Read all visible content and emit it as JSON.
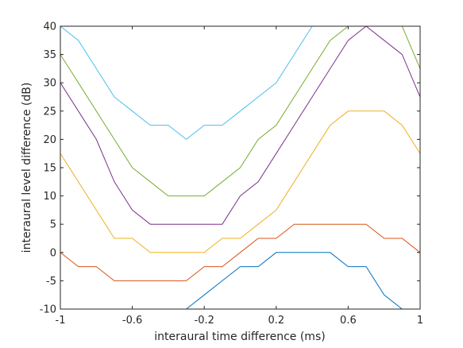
{
  "chart_data": {
    "type": "line",
    "title": "",
    "xlabel": "interaural time difference (ms)",
    "ylabel": "interaural level difference (dB)",
    "xlim": [
      -1,
      1
    ],
    "ylim": [
      -10,
      40
    ],
    "xticks": [
      -1,
      -0.6,
      -0.2,
      0.2,
      0.6,
      1
    ],
    "xtick_labels": [
      "-1",
      "-0.6",
      "-0.2",
      "0.2",
      "0.6",
      "1"
    ],
    "yticks": [
      -10,
      -5,
      0,
      5,
      10,
      15,
      20,
      25,
      30,
      35,
      40
    ],
    "ytick_labels": [
      "-10",
      "-5",
      "0",
      "5",
      "10",
      "15",
      "20",
      "25",
      "30",
      "35",
      "40"
    ],
    "grid": false,
    "legend": "none",
    "x": [
      -1,
      -0.9,
      -0.8,
      -0.7,
      -0.6,
      -0.5,
      -0.4,
      -0.3,
      -0.2,
      -0.1,
      0,
      0.1,
      0.2,
      0.3,
      0.4,
      0.5,
      0.6,
      0.7,
      0.8,
      0.9,
      1
    ],
    "series": [
      {
        "color": "#0072bd",
        "values": [
          -10,
          -10,
          -10,
          -10,
          -10,
          -10,
          -10,
          -10,
          -7.5,
          -5,
          -2.5,
          -2.5,
          0,
          0,
          0,
          0,
          -2.5,
          -2.5,
          -7.5,
          -10,
          -12.5
        ]
      },
      {
        "color": "#d95319",
        "values": [
          0,
          -2.5,
          -2.5,
          -5,
          -5,
          -5,
          -5,
          -5,
          -2.5,
          -2.5,
          0,
          2.5,
          2.5,
          5,
          5,
          5,
          5,
          5,
          2.5,
          2.5,
          0
        ]
      },
      {
        "color": "#edb120",
        "values": [
          17.5,
          12.5,
          7.5,
          2.5,
          2.5,
          0,
          0,
          0,
          0,
          2.5,
          2.5,
          5,
          7.5,
          12.5,
          17.5,
          22.5,
          25,
          25,
          25,
          22.5,
          17.5
        ]
      },
      {
        "color": "#7e2f8e",
        "values": [
          30,
          25,
          20,
          12.5,
          7.5,
          5,
          5,
          5,
          5,
          5,
          10,
          12.5,
          17.5,
          22.5,
          27.5,
          32.5,
          37.5,
          40,
          37.5,
          35,
          27.5
        ]
      },
      {
        "color": "#77ac30",
        "values": [
          35,
          30,
          25,
          20,
          15,
          12.5,
          10,
          10,
          10,
          12.5,
          15,
          20,
          22.5,
          27.5,
          32.5,
          37.5,
          40,
          40,
          40,
          40,
          32.5
        ]
      },
      {
        "color": "#4dbeee",
        "values": [
          40,
          37.5,
          32.5,
          27.5,
          25,
          22.5,
          22.5,
          20,
          22.5,
          22.5,
          25,
          27.5,
          30,
          35,
          40,
          40,
          40,
          40,
          40,
          40,
          40
        ]
      }
    ]
  }
}
